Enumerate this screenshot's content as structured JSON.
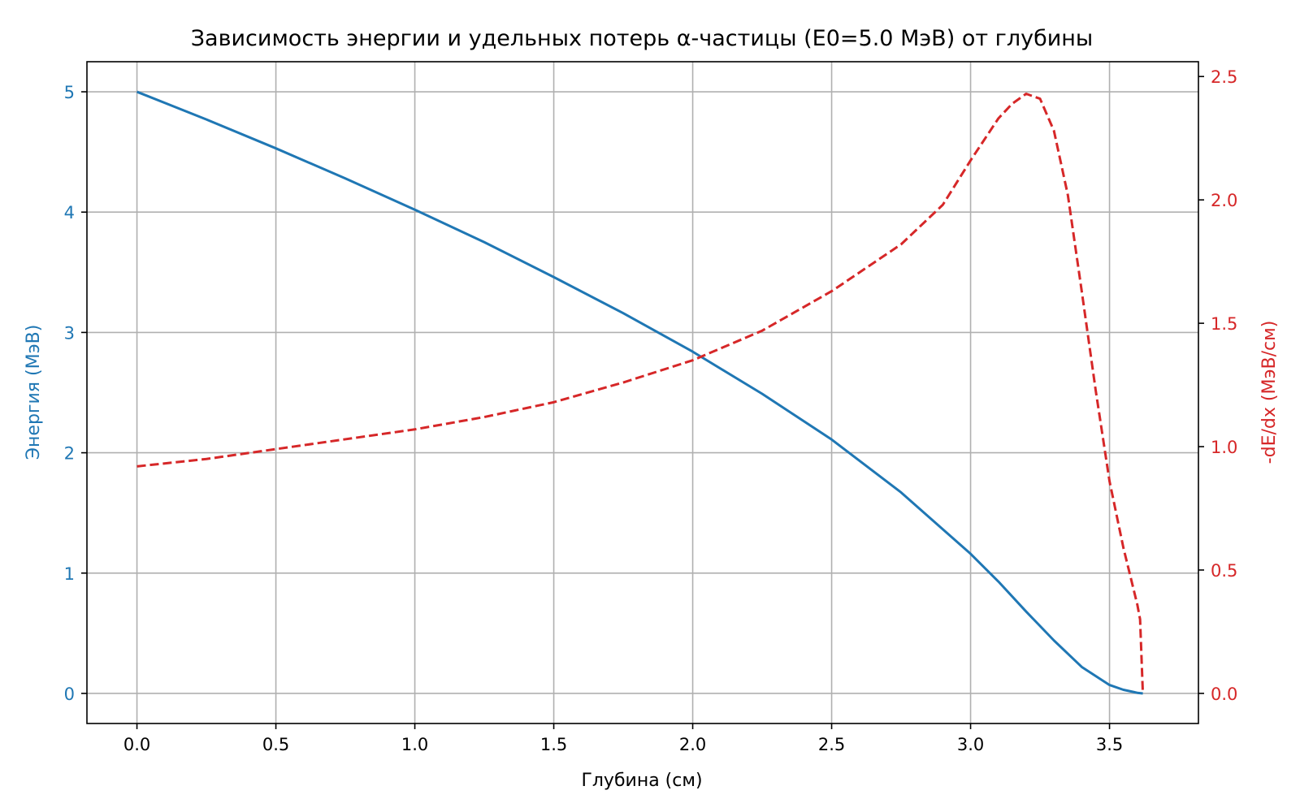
{
  "chart_data": {
    "type": "line",
    "title": "Зависимость энергии и удельных потерь α-частицы (E0=5.0 МэВ) от глубины",
    "xlabel": "Глубина (см)",
    "xlim": [
      -0.18,
      3.82
    ],
    "xticks": [
      0.0,
      0.5,
      1.0,
      1.5,
      2.0,
      2.5,
      3.0,
      3.5
    ],
    "xtick_labels": [
      "0.0",
      "0.5",
      "1.0",
      "1.5",
      "2.0",
      "2.5",
      "3.0",
      "3.5"
    ],
    "grid": true,
    "y_left": {
      "label": "Энергия (МэВ)",
      "lim": [
        -0.25,
        5.25
      ],
      "ticks": [
        0,
        1,
        2,
        3,
        4,
        5
      ],
      "tick_labels": [
        "0",
        "1",
        "2",
        "3",
        "4",
        "5"
      ],
      "color": "#1f77b4"
    },
    "y_right": {
      "label": "-dE/dx (МэВ/см)",
      "lim": [
        -0.122,
        2.56
      ],
      "ticks": [
        0.0,
        0.5,
        1.0,
        1.5,
        2.0,
        2.5
      ],
      "tick_labels": [
        "0.0",
        "0.5",
        "1.0",
        "1.5",
        "2.0",
        "2.5"
      ],
      "color": "#d62728"
    },
    "series": [
      {
        "axis": "left",
        "color": "#1f77b4",
        "style": "solid",
        "x": [
          0.0,
          0.25,
          0.5,
          0.75,
          1.0,
          1.25,
          1.5,
          1.75,
          2.0,
          2.25,
          2.5,
          2.75,
          3.0,
          3.1,
          3.2,
          3.3,
          3.4,
          3.5,
          3.55,
          3.6,
          3.62
        ],
        "y": [
          5.0,
          4.77,
          4.53,
          4.28,
          4.02,
          3.75,
          3.46,
          3.16,
          2.84,
          2.49,
          2.11,
          1.67,
          1.16,
          0.93,
          0.68,
          0.44,
          0.22,
          0.07,
          0.03,
          0.005,
          0.0
        ]
      },
      {
        "axis": "right",
        "color": "#d62728",
        "style": "dashed",
        "x": [
          0.0,
          0.25,
          0.5,
          0.75,
          1.0,
          1.25,
          1.5,
          1.75,
          2.0,
          2.25,
          2.5,
          2.75,
          2.9,
          3.0,
          3.1,
          3.15,
          3.2,
          3.25,
          3.3,
          3.35,
          3.4,
          3.45,
          3.5,
          3.55,
          3.6,
          3.61,
          3.62
        ],
        "y": [
          0.92,
          0.95,
          0.99,
          1.03,
          1.07,
          1.12,
          1.18,
          1.26,
          1.35,
          1.47,
          1.63,
          1.82,
          1.98,
          2.16,
          2.33,
          2.39,
          2.43,
          2.41,
          2.28,
          2.02,
          1.63,
          1.23,
          0.86,
          0.59,
          0.36,
          0.3,
          0.0
        ]
      }
    ]
  }
}
